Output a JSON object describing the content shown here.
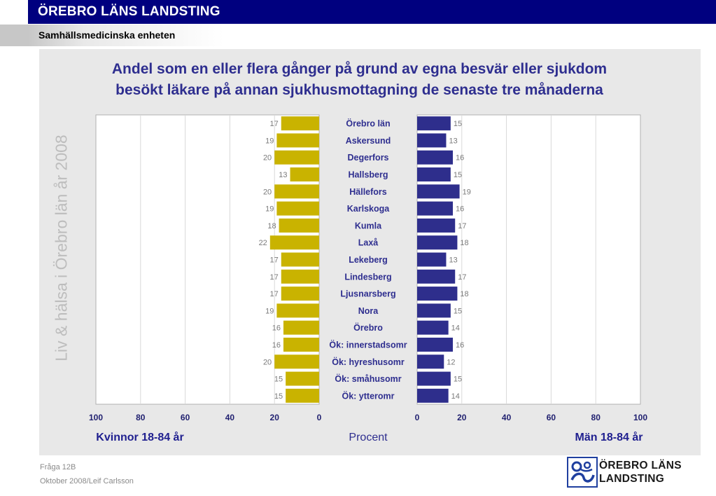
{
  "header": {
    "title": "ÖREBRO LÄNS LANDSTING",
    "subtitle": "Samhällsmedicinska enheten"
  },
  "side_text": "Liv & hälsa i Örebro län år 2008",
  "colors": {
    "women": "#c9b300",
    "men": "#2e2e8c",
    "category": "#2e2e8f",
    "panel": "#e8e8e8"
  },
  "chart_data": {
    "type": "bar",
    "orientation": "horizontal",
    "layout": "butterfly",
    "title_lines": [
      "Andel som en eller flera gånger på grund av egna besvär  eller sjukdom",
      "besökt läkare på annan sjukhusmottagning de senaste tre månaderna"
    ],
    "categories": [
      "Örebro län",
      "Askersund",
      "Degerfors",
      "Hallsberg",
      "Hällefors",
      "Karlskoga",
      "Kumla",
      "Laxå",
      "Lekeberg",
      "Lindesberg",
      "Ljusnarsberg",
      "Nora",
      "Örebro",
      "Ök: innerstadsomr",
      "Ök: hyreshusomr",
      "Ök: småhusomr",
      "Ök: ytteromr"
    ],
    "series": [
      {
        "name": "Kvinnor 18-84 år",
        "values": [
          17,
          19,
          20,
          13,
          20,
          19,
          18,
          22,
          17,
          17,
          17,
          19,
          16,
          16,
          20,
          15,
          15
        ]
      },
      {
        "name": "Män 18-84 år",
        "values": [
          15,
          13,
          16,
          15,
          19,
          16,
          17,
          18,
          13,
          17,
          18,
          15,
          14,
          16,
          12,
          15,
          14
        ]
      }
    ],
    "xlabel": "Procent",
    "x_ticks": [
      "100",
      "80",
      "60",
      "40",
      "20",
      "0"
    ],
    "x_ticks_right": [
      "0",
      "20",
      "40",
      "60",
      "80",
      "100"
    ],
    "xlim": [
      0,
      100
    ],
    "grid": true
  },
  "footer": {
    "question": "Fråga 12B",
    "date_author": "Oktober 2008/Leif Carlsson"
  },
  "logo": {
    "line1": "ÖREBRO LÄNS",
    "line2": "LANDSTING"
  }
}
